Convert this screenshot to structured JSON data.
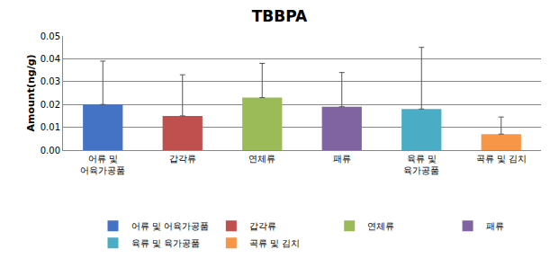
{
  "chart_data": {
    "type": "bar",
    "title": "TBBPA",
    "y_label": "Amount(ng/g)",
    "categories": [
      "어류 및 어육가공품",
      "갑각류",
      "연체류",
      "패류",
      "육류 및 육가공품",
      "곡류 및 김치"
    ],
    "values": [
      0.02,
      0.015,
      0.023,
      0.019,
      0.018,
      0.007
    ],
    "errors": [
      0.019,
      0.018,
      0.015,
      0.015,
      0.027,
      0.0075
    ],
    "colors": [
      "#4472c4",
      "#c0504d",
      "#9bbb59",
      "#8064a2",
      "#4bacc6",
      "#f79646"
    ],
    "ylim": [
      0,
      0.05
    ],
    "yticks": [
      {
        "value": 0,
        "label": "0.00"
      },
      {
        "value": 0.01,
        "label": "0.01"
      },
      {
        "value": 0.02,
        "label": "0.02"
      },
      {
        "value": 0.03,
        "label": "0.03"
      },
      {
        "value": 0.04,
        "label": "0.04"
      },
      {
        "value": 0.05,
        "label": "0.05"
      }
    ],
    "grid": true,
    "legend": "bottom"
  }
}
